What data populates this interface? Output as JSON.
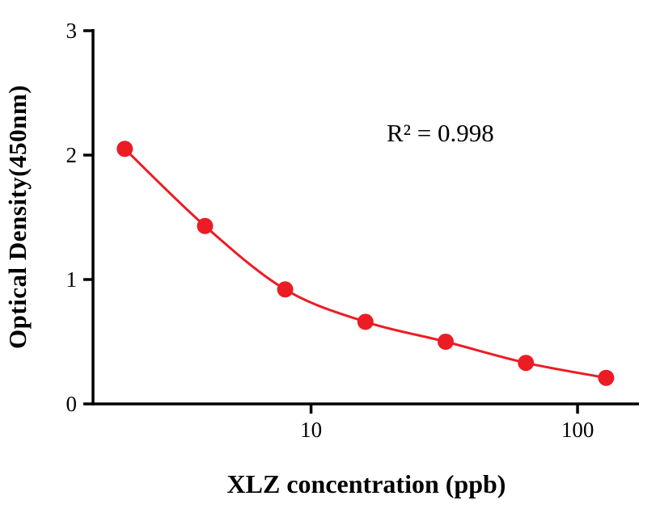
{
  "chart_data": {
    "type": "scatter",
    "x": [
      2,
      4,
      8,
      16,
      32,
      64,
      128
    ],
    "y": [
      2.05,
      1.43,
      0.92,
      0.66,
      0.5,
      0.33,
      0.21
    ],
    "title": "",
    "xlabel": "XLZ concentration (ppb)",
    "ylabel": "Optical Density(450nm)",
    "annotation": "R² = 0.998",
    "x_scale": "log",
    "xlim": [
      1.52,
      170
    ],
    "ylim": [
      0,
      3
    ],
    "x_ticks": [
      10,
      100
    ],
    "x_tick_labels": [
      "10",
      "100"
    ],
    "y_ticks": [
      0,
      1,
      2,
      3
    ],
    "y_tick_labels": [
      "0",
      "1",
      "2",
      "3"
    ],
    "grid": false,
    "legend": "none",
    "marker_color": "#EC1C24",
    "line_color": "#EC1C24",
    "axis_color": "#000000",
    "marker_radius": 10,
    "curve_fit": "4PL decay through points"
  }
}
